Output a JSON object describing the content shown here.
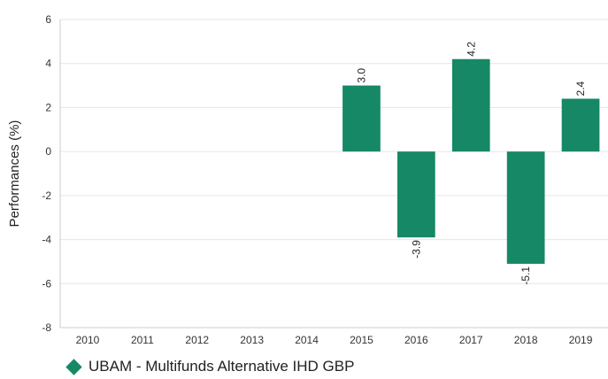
{
  "chart_data": {
    "type": "bar",
    "ylabel": "Performances (%)",
    "categories": [
      "2010",
      "2011",
      "2012",
      "2013",
      "2014",
      "2015",
      "2016",
      "2017",
      "2018",
      "2019"
    ],
    "series": [
      {
        "name": "UBAM - Multifunds Alternative IHD GBP",
        "color": "#168865",
        "values": [
          null,
          null,
          null,
          null,
          null,
          3.0,
          -3.9,
          4.2,
          -5.1,
          2.4
        ],
        "labels": [
          "",
          "",
          "",
          "",
          "",
          "3.0",
          "-3.9",
          "4.2",
          "-5.1",
          "2.4"
        ]
      }
    ],
    "ylim": [
      -8,
      6
    ],
    "yticks": [
      6,
      4,
      2,
      0,
      -2,
      -4,
      -6,
      -8
    ],
    "grid": true,
    "legend_position": "bottom-left"
  }
}
